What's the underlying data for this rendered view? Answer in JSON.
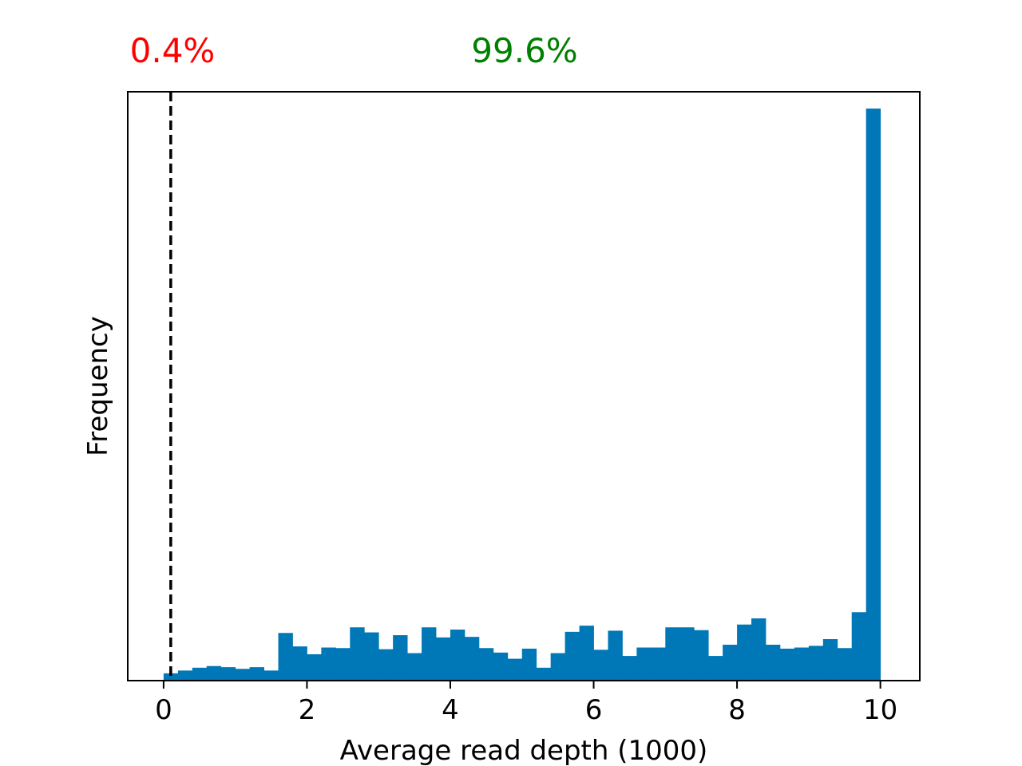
{
  "chart_data": {
    "type": "bar",
    "subtype": "histogram",
    "xlabel": "Average read depth (1000)",
    "ylabel": "Frequency",
    "xlim": [
      -0.5,
      10.55
    ],
    "ylim": [
      0,
      105
    ],
    "x_ticks": [
      0,
      2,
      4,
      6,
      8,
      10
    ],
    "y_ticks_shown": false,
    "grid": false,
    "bar_color": "#0077b6",
    "bin_start": 0,
    "bin_width": 0.2,
    "values": [
      1.3,
      1.8,
      2.3,
      2.6,
      2.4,
      2.1,
      2.4,
      1.8,
      8.5,
      6.1,
      4.7,
      5.9,
      5.8,
      9.5,
      8.6,
      5.6,
      8.1,
      4.9,
      9.5,
      7.7,
      9.1,
      7.8,
      5.8,
      5.0,
      3.9,
      5.7,
      2.3,
      4.9,
      8.7,
      9.8,
      5.5,
      8.9,
      4.4,
      5.9,
      5.9,
      9.5,
      9.5,
      9.0,
      4.4,
      6.4,
      10.0,
      11.1,
      6.4,
      5.7,
      5.9,
      6.2,
      7.4,
      5.8,
      12.2,
      102.0
    ],
    "threshold": {
      "x": 0.1,
      "style": "dashed",
      "color": "#000000"
    },
    "annotations": [
      {
        "text": "0.4%",
        "color": "#ff0000"
      },
      {
        "text": "99.6%",
        "color": "#008000"
      }
    ]
  }
}
